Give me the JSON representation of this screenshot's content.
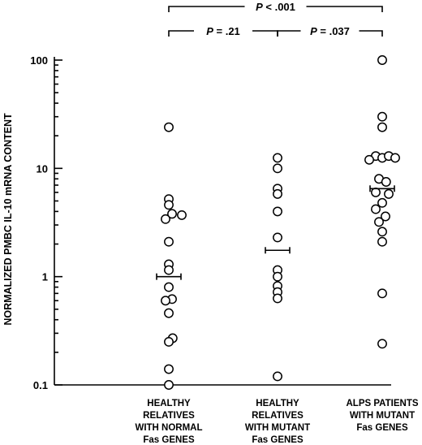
{
  "chart_data": {
    "type": "scatter",
    "ylabel": "NORMALIZED PMBC IL-10 mRNA CONTENT",
    "xlabel": "",
    "yscale": "log",
    "ylim": [
      0.1,
      100
    ],
    "yticks": [
      {
        "value": 0.1,
        "label": "0.1"
      },
      {
        "value": 1,
        "label": "1"
      },
      {
        "value": 10,
        "label": "10"
      },
      {
        "value": 100,
        "label": "100"
      }
    ],
    "grid": false,
    "categories": [
      {
        "lines": [
          "HEALTHY",
          "RELATIVES",
          "WITH NORMAL",
          "Fas GENES"
        ]
      },
      {
        "lines": [
          "HEALTHY",
          "RELATIVES",
          "WITH MUTANT",
          "Fas GENES"
        ]
      },
      {
        "lines": [
          "ALPS PATIENTS",
          "WITH MUTANT",
          "Fas GENES"
        ]
      }
    ],
    "series": [
      {
        "points": [
          {
            "v": 24,
            "o": 0
          },
          {
            "v": 5.2,
            "o": 0
          },
          {
            "v": 4.6,
            "o": 0
          },
          {
            "v": 3.8,
            "o": 0.5
          },
          {
            "v": 3.7,
            "o": 2
          },
          {
            "v": 3.4,
            "o": -0.5
          },
          {
            "v": 2.1,
            "o": 0
          },
          {
            "v": 1.3,
            "o": 0
          },
          {
            "v": 1.15,
            "o": 0
          },
          {
            "v": 0.8,
            "o": 0
          },
          {
            "v": 0.62,
            "o": 0.5
          },
          {
            "v": 0.6,
            "o": -0.5
          },
          {
            "v": 0.46,
            "o": 0
          },
          {
            "v": 0.27,
            "o": 0.6
          },
          {
            "v": 0.25,
            "o": 0
          },
          {
            "v": 0.14,
            "o": 0
          },
          {
            "v": 0.1,
            "o": 0
          }
        ],
        "mean": 1.0
      },
      {
        "points": [
          {
            "v": 12.5,
            "o": 0
          },
          {
            "v": 10,
            "o": 0
          },
          {
            "v": 6.5,
            "o": 0
          },
          {
            "v": 5.8,
            "o": 0
          },
          {
            "v": 4,
            "o": 0
          },
          {
            "v": 2.3,
            "o": 0
          },
          {
            "v": 1.15,
            "o": 0
          },
          {
            "v": 1.0,
            "o": 0
          },
          {
            "v": 0.82,
            "o": 0
          },
          {
            "v": 0.72,
            "o": 0
          },
          {
            "v": 0.63,
            "o": 0
          },
          {
            "v": 0.12,
            "o": 0
          }
        ],
        "mean": 1.75
      },
      {
        "points": [
          {
            "v": 100,
            "o": 0
          },
          {
            "v": 30,
            "o": 0
          },
          {
            "v": 24,
            "o": 0
          },
          {
            "v": 13,
            "o": -1
          },
          {
            "v": 12.5,
            "o": 0
          },
          {
            "v": 13,
            "o": 1
          },
          {
            "v": 12,
            "o": -2
          },
          {
            "v": 12.5,
            "o": 2
          },
          {
            "v": 8,
            "o": -0.5
          },
          {
            "v": 7.5,
            "o": 0.6
          },
          {
            "v": 6,
            "o": -1
          },
          {
            "v": 5.8,
            "o": 1
          },
          {
            "v": 4.8,
            "o": 0
          },
          {
            "v": 4.2,
            "o": -1
          },
          {
            "v": 3.6,
            "o": 0.5
          },
          {
            "v": 3.2,
            "o": -0.5
          },
          {
            "v": 2.6,
            "o": 0
          },
          {
            "v": 2.1,
            "o": 0
          },
          {
            "v": 0.7,
            "o": 0
          },
          {
            "v": 0.24,
            "o": 0
          }
        ],
        "mean": 6.5
      }
    ],
    "comparisons": [
      {
        "from": 0,
        "to": 2,
        "p": "P",
        "op": "<",
        "value": ".001",
        "level": 0
      },
      {
        "from": 0,
        "to": 1,
        "p": "P",
        "op": "=",
        "value": ".21",
        "level": 1
      },
      {
        "from": 1,
        "to": 2,
        "p": "P",
        "op": "=",
        "value": ".037",
        "level": 1
      }
    ]
  }
}
